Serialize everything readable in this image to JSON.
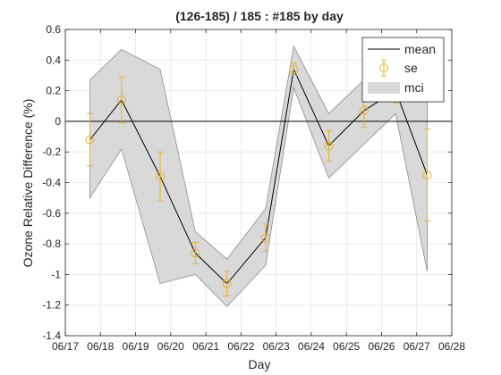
{
  "chart_data": {
    "type": "line",
    "title": "(126-185) / 185 : #185 by day",
    "xlabel": "Day",
    "ylabel": "Ozone Relative Difference (%)",
    "x_ticks": [
      "06/17",
      "06/18",
      "06/19",
      "06/20",
      "06/21",
      "06/22",
      "06/23",
      "06/24",
      "06/25",
      "06/26",
      "06/27",
      "06/28"
    ],
    "y_ticks": [
      "-1.4",
      "-1.2",
      "-1",
      "-0.8",
      "-0.6",
      "-0.4",
      "-0.2",
      "0",
      "0.2",
      "0.4",
      "0.6"
    ],
    "xlim": [
      "06/17",
      "06/28"
    ],
    "ylim": [
      -1.4,
      0.6
    ],
    "grid": true,
    "legend_position": "top-right",
    "legend": [
      "mean",
      "se",
      "mci"
    ],
    "colors": {
      "mean": "#000000",
      "se": "#EDB120",
      "mci": "#D9D9D9",
      "mci_edge": "#8C8C8C",
      "zero_line": "#000000"
    },
    "series": [
      {
        "name": "mean",
        "x": [
          17.7,
          18.6,
          19.7,
          20.7,
          21.6,
          22.7,
          23.5,
          24.5,
          25.5,
          26.4,
          27.3
        ],
        "y": [
          -0.12,
          0.14,
          -0.36,
          -0.86,
          -1.06,
          -0.76,
          0.34,
          -0.16,
          0.07,
          0.2,
          -0.35
        ]
      },
      {
        "name": "se",
        "x": [
          17.7,
          18.6,
          19.7,
          20.7,
          21.6,
          22.7,
          23.5,
          24.5,
          25.5,
          26.4,
          27.3
        ],
        "y": [
          -0.12,
          0.14,
          -0.36,
          -0.86,
          -1.06,
          -0.76,
          0.34,
          -0.16,
          0.07,
          0.2,
          -0.35
        ],
        "err_lower": [
          -0.29,
          -0.01,
          -0.52,
          -0.93,
          -1.14,
          -0.85,
          0.3,
          -0.26,
          -0.04,
          0.12,
          -0.65
        ],
        "err_upper": [
          0.05,
          0.29,
          -0.2,
          -0.79,
          -0.98,
          -0.67,
          0.38,
          -0.06,
          0.18,
          0.28,
          -0.05
        ]
      },
      {
        "name": "mci",
        "x": [
          17.7,
          18.6,
          19.7,
          20.7,
          21.6,
          22.7,
          23.5,
          24.5,
          25.5,
          26.4,
          27.3
        ],
        "lower": [
          -0.5,
          -0.18,
          -1.06,
          -1.0,
          -1.21,
          -0.94,
          0.22,
          -0.37,
          -0.15,
          0.05,
          -0.98
        ],
        "upper": [
          0.27,
          0.47,
          0.34,
          -0.72,
          -0.9,
          -0.57,
          0.49,
          0.05,
          0.27,
          0.36,
          0.24
        ]
      }
    ]
  }
}
